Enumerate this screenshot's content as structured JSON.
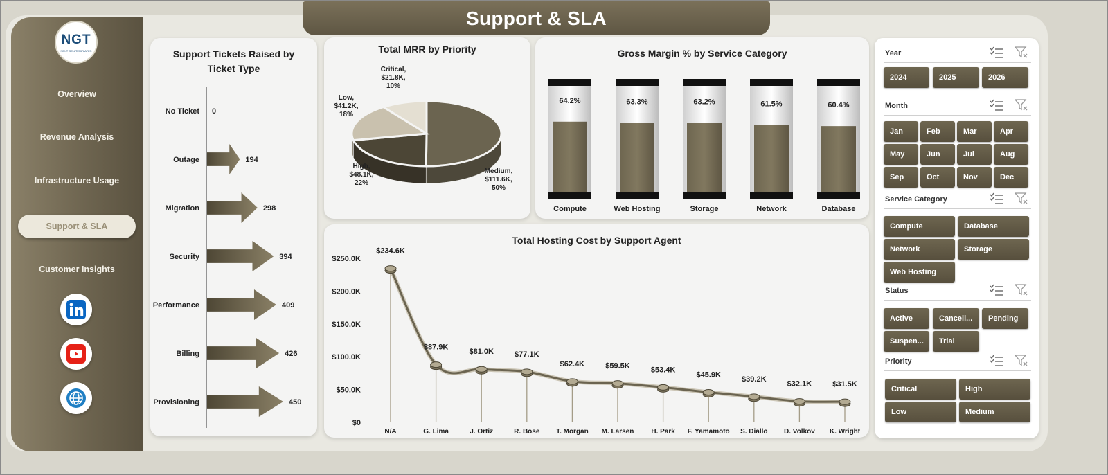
{
  "header": {
    "title": "Support & SLA"
  },
  "logo": {
    "text": "NGT",
    "subtext": "NEXT GEN TEMPLATES"
  },
  "nav": {
    "items": [
      "Overview",
      "Revenue Analysis",
      "Infrastructure Usage",
      "Support & SLA",
      "Customer Insights"
    ],
    "active": "Support & SLA"
  },
  "social": [
    "linkedin-icon",
    "youtube-icon",
    "globe-icon"
  ],
  "charts": {
    "tickets": {
      "title_line1": "Support Tickets Raised by",
      "title_line2": "Ticket Type"
    },
    "mrr": {
      "title": "Total MRR by Priority"
    },
    "margin": {
      "title": "Gross Margin % by Service Category"
    },
    "hosting": {
      "title": "Total Hosting Cost by Support Agent"
    }
  },
  "chart_data": [
    {
      "type": "bar",
      "title": "Support Tickets Raised by Ticket Type",
      "orientation": "horizontal",
      "categories": [
        "No Ticket",
        "Outage",
        "Migration",
        "Security",
        "Performance",
        "Billing",
        "Provisioning"
      ],
      "values": [
        0,
        194,
        298,
        394,
        409,
        426,
        450
      ],
      "data_labels": [
        "0",
        "194",
        "298",
        "394",
        "409",
        "426",
        "450"
      ]
    },
    {
      "type": "pie",
      "title": "Total MRR by Priority",
      "labels": [
        "Medium",
        "High",
        "Low",
        "Critical"
      ],
      "values": [
        111.6,
        48.1,
        41.2,
        21.8
      ],
      "percents": [
        50,
        22,
        18,
        10
      ],
      "data_labels": [
        [
          "Medium,",
          "$111.6K,",
          "50%"
        ],
        [
          "High,",
          "$48.1K,",
          "22%"
        ],
        [
          "Low,",
          "$41.2K,",
          "18%"
        ],
        [
          "Critical,",
          "$21.8K,",
          "10%"
        ]
      ],
      "colors": [
        "#6b6450",
        "#4c4636",
        "#c9c1ae",
        "#e4dfd2"
      ]
    },
    {
      "type": "bar",
      "title": "Gross Margin % by Service Category",
      "categories": [
        "Compute",
        "Web Hosting",
        "Storage",
        "Network",
        "Database"
      ],
      "values": [
        64.2,
        63.3,
        63.2,
        61.5,
        60.4
      ],
      "data_labels": [
        "64.2%",
        "63.3%",
        "63.2%",
        "61.5%",
        "60.4%"
      ],
      "ylim": [
        0,
        100
      ]
    },
    {
      "type": "line",
      "title": "Total Hosting Cost by Support Agent",
      "categories": [
        "N/A",
        "G. Lima",
        "J. Ortiz",
        "R. Bose",
        "T. Morgan",
        "M. Larsen",
        "H. Park",
        "F. Yamamoto",
        "S. Diallo",
        "D. Volkov",
        "K. Wright"
      ],
      "values": [
        234.6,
        87.9,
        81.0,
        77.1,
        62.4,
        59.5,
        53.4,
        45.9,
        39.2,
        32.1,
        31.5
      ],
      "data_labels": [
        "$234.6K",
        "$87.9K",
        "$81.0K",
        "$77.1K",
        "$62.4K",
        "$59.5K",
        "$53.4K",
        "$45.9K",
        "$39.2K",
        "$32.1K",
        "$31.5K"
      ],
      "ylim": [
        0,
        250
      ],
      "yticks": [
        "$0",
        "$50.0K",
        "$100.0K",
        "$150.0K",
        "$200.0K",
        "$250.0K"
      ]
    }
  ],
  "filters": {
    "year": {
      "title": "Year",
      "options": [
        "2024",
        "2025",
        "2026"
      ]
    },
    "month": {
      "title": "Month",
      "options": [
        "Jan",
        "Feb",
        "Mar",
        "Apr",
        "May",
        "Jun",
        "Jul",
        "Aug",
        "Sep",
        "Oct",
        "Nov",
        "Dec"
      ]
    },
    "service": {
      "title": "Service Category",
      "options": [
        "Compute",
        "Database",
        "Network",
        "Storage",
        "Web Hosting"
      ]
    },
    "status": {
      "title": "Status",
      "options": [
        "Active",
        "Cancell...",
        "Pending",
        "Suspen...",
        "Trial"
      ]
    },
    "priority": {
      "title": "Priority",
      "options": [
        "Critical",
        "High",
        "Low",
        "Medium"
      ]
    }
  },
  "colors": {
    "brand": "#6b6450",
    "dark": "#4c4636",
    "panel": "#f4f4f3",
    "background": "#d8d6cc"
  }
}
